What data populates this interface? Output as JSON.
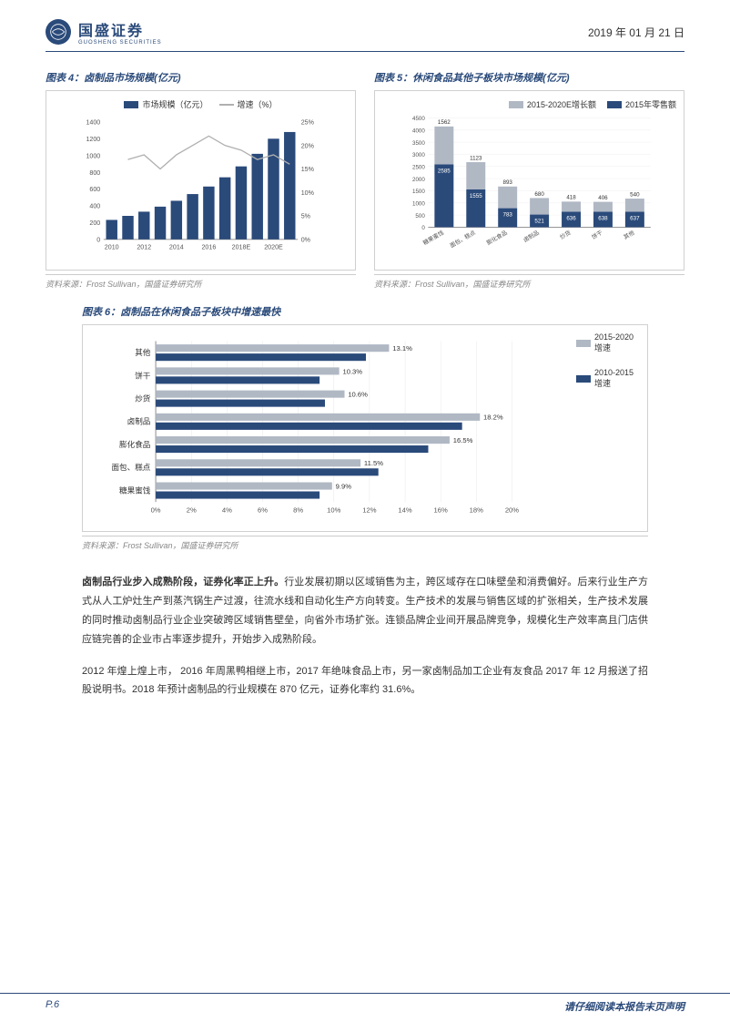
{
  "header": {
    "logo_main": "国盛证券",
    "logo_sub": "GUOSHENG SECURITIES",
    "date": "2019 年 01 月 21 日"
  },
  "chart4": {
    "title": "图表 4：卤制品市场规模(亿元)",
    "type": "bar-line-combo",
    "legend": {
      "bar": "市场规模（亿元）",
      "line": "增速（%）"
    },
    "categories": [
      "2010",
      "2012",
      "2014",
      "2016",
      "2018E",
      "2020E"
    ],
    "bar_values": [
      232,
      280,
      330,
      390,
      460,
      540,
      630,
      740,
      870,
      1020,
      1200,
      1280
    ],
    "line_values": [
      0,
      17,
      18,
      15,
      18,
      20,
      22,
      20,
      19,
      17,
      18,
      16
    ],
    "ylim": [
      0,
      1400
    ],
    "ytick_step": 200,
    "ylim2": [
      0,
      25
    ],
    "ytick_step2": 5,
    "bar_color": "#2a4a7a",
    "line_color": "#b0b0b0",
    "grid_color": "#d0d0d0",
    "label_fontsize": 9,
    "source": "资料来源：Frost Sullivan，国盛证券研究所"
  },
  "chart5": {
    "title": "图表 5：休闲食品其他子板块市场规模(亿元)",
    "type": "stacked-bar",
    "legend": {
      "growth": "2015-2020E增长额",
      "sales": "2015年零售额"
    },
    "categories": [
      "糖果蜜饯",
      "面包、糕点",
      "膨化食品",
      "卤制品",
      "炒货",
      "饼干",
      "其他"
    ],
    "sales_values": [
      2585,
      1555,
      783,
      521,
      636,
      638,
      637
    ],
    "growth_values": [
      1562,
      1123,
      893,
      680,
      418,
      406,
      540
    ],
    "ylim": [
      0,
      4500
    ],
    "ytick_step": 500,
    "sales_color": "#2a4a7a",
    "growth_color": "#b0b8c4",
    "label_fontsize": 8,
    "source": "资料来源：Frost Sullivan，国盛证券研究所"
  },
  "chart6": {
    "title": "图表 6：卤制品在休闲食品子板块中增速最快",
    "type": "grouped-horizontal-bar",
    "legend": {
      "s1": "2015-2020增速",
      "s2": "2010-2015增速"
    },
    "categories": [
      "其他",
      "饼干",
      "炒货",
      "卤制品",
      "膨化食品",
      "面包、糕点",
      "糖果蜜饯"
    ],
    "series1": [
      13.1,
      10.3,
      10.6,
      18.2,
      16.5,
      11.5,
      9.9
    ],
    "series2": [
      11.8,
      9.2,
      9.5,
      17.2,
      15.3,
      12.5,
      9.2
    ],
    "labels": [
      "13.1%",
      "10.3%",
      "10.6%",
      "18.2%",
      "16.5%",
      "11.5%",
      "9.9%"
    ],
    "xlim": [
      0,
      20
    ],
    "xtick_step": 2,
    "s1_color": "#b0b8c4",
    "s2_color": "#2a4a7a",
    "label_fontsize": 9,
    "source": "资料来源：Frost Sullivan，国盛证券研究所"
  },
  "body": {
    "p1_bold": "卤制品行业步入成熟阶段，证券化率正上升。",
    "p1": "行业发展初期以区域销售为主，跨区域存在口味壁垒和消费偏好。后来行业生产方式从人工炉灶生产到蒸汽锅生产过渡，往流水线和自动化生产方向转变。生产技术的发展与销售区域的扩张相关，生产技术发展的同时推动卤制品行业企业突破跨区域销售壁垒，向省外市场扩张。连锁品牌企业间开展品牌竞争，规模化生产效率高且门店供应链完善的企业市占率逐步提升，开始步入成熟阶段。",
    "p2": "2012 年煌上煌上市， 2016 年周黑鸭相继上市，2017 年绝味食品上市，另一家卤制品加工企业有友食品 2017 年 12 月报送了招股说明书。2018 年预计卤制品的行业规模在 870 亿元，证券化率约 31.6%。"
  },
  "footer": {
    "page": "P.6",
    "disclaimer": "请仔细阅读本报告末页声明"
  }
}
